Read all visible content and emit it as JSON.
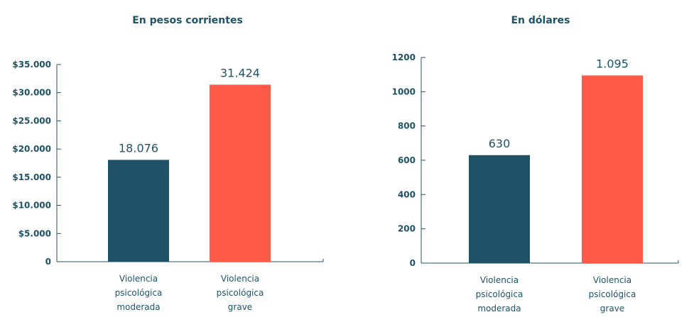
{
  "chart_data": [
    {
      "type": "bar",
      "title": "En pesos corrientes",
      "categories": [
        [
          "Violencia",
          "psicológica",
          "moderada"
        ],
        [
          "Violencia",
          "psicológica",
          "grave"
        ]
      ],
      "values": [
        18076,
        31424
      ],
      "value_labels": [
        "18.076",
        "31.424"
      ],
      "colors": [
        "#1f5266",
        "#ff5a48"
      ],
      "ylim": [
        0,
        35000
      ],
      "yticks": [
        0,
        5000,
        10000,
        15000,
        20000,
        25000,
        30000,
        35000
      ],
      "ytick_labels": [
        "0",
        "$5.000",
        "$10.000",
        "$15.000",
        "$20.000",
        "$25.000",
        "$30.000",
        "$35.000"
      ],
      "xlabel": "",
      "ylabel": "",
      "grid": false
    },
    {
      "type": "bar",
      "title": "En dólares",
      "categories": [
        [
          "Violencia",
          "psicológica",
          "moderada"
        ],
        [
          "Violencia",
          "psicológica",
          "grave"
        ]
      ],
      "values": [
        630,
        1095
      ],
      "value_labels": [
        "630",
        "1.095"
      ],
      "colors": [
        "#1f5266",
        "#ff5a48"
      ],
      "ylim": [
        0,
        1200
      ],
      "yticks": [
        0,
        200,
        400,
        600,
        800,
        1000,
        1200
      ],
      "ytick_labels": [
        "0",
        "200",
        "400",
        "600",
        "800",
        "1000",
        "1200"
      ],
      "xlabel": "",
      "ylabel": "",
      "grid": false
    }
  ]
}
